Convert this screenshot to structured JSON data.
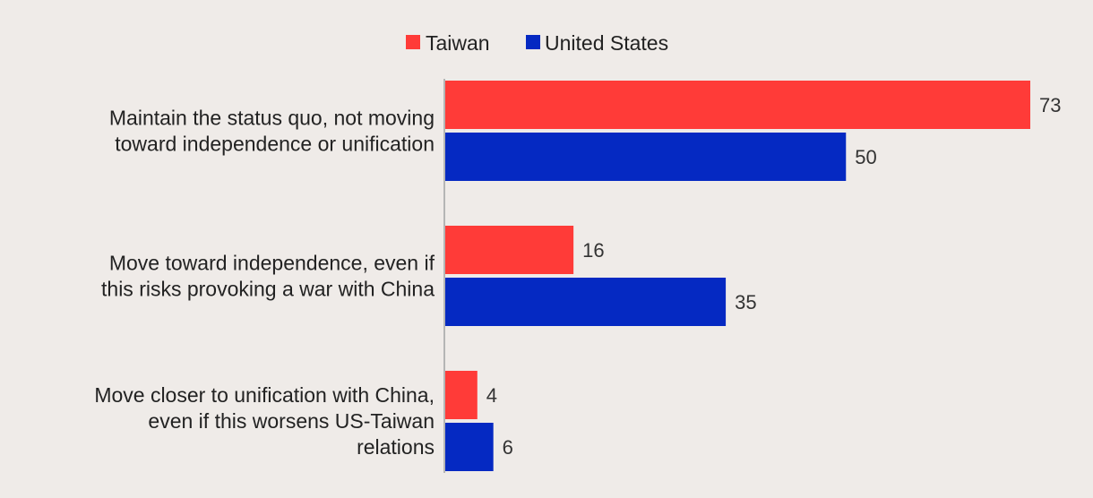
{
  "chart_data": {
    "type": "bar",
    "orientation": "horizontal",
    "categories": [
      [
        "Maintain the status quo, not moving",
        "toward independence or unification"
      ],
      [
        "Move toward independence, even if",
        "this risks provoking a war with China"
      ],
      [
        "Move closer to unification with China,",
        "even if this worsens US-Taiwan",
        "relations"
      ]
    ],
    "series": [
      {
        "name": "Taiwan",
        "color": "#ff3b38",
        "values": [
          73,
          16,
          4
        ]
      },
      {
        "name": "United States",
        "color": "#0529c2",
        "values": [
          50,
          35,
          6
        ]
      }
    ],
    "xlim": [
      0,
      73
    ],
    "legend_position": "top-center",
    "data_labels": true,
    "grid": false
  }
}
